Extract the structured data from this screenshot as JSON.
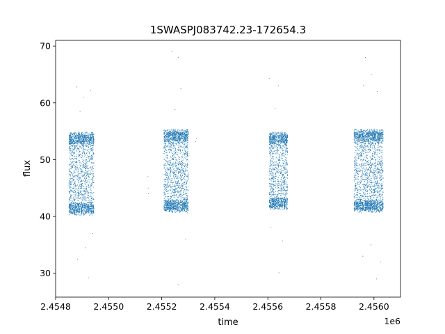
{
  "chart_data": {
    "type": "scatter",
    "title": "1SWASPJ083742.23-172654.3",
    "xlabel": "time",
    "ylabel": "flux",
    "x_offset_label": "1e6",
    "xlim": [
      2454800,
      2456100
    ],
    "ylim": [
      25.8,
      71.0
    ],
    "x_ticks": [
      2454800,
      2455000,
      2455200,
      2455400,
      2455600,
      2455800,
      2456000
    ],
    "x_tick_labels": [
      "2.4548",
      "2.4550",
      "2.4552",
      "2.4554",
      "2.4556",
      "2.4558",
      "2.4560"
    ],
    "y_ticks": [
      30,
      40,
      50,
      60,
      70
    ],
    "y_tick_labels": [
      "30",
      "40",
      "50",
      "60",
      "70"
    ],
    "grid": false,
    "point_color": "#1f77b4",
    "observing_seasons": [
      {
        "x_range": [
          2454850,
          2454945
        ],
        "flux_range": [
          40.5,
          54.5
        ]
      },
      {
        "x_range": [
          2455208,
          2455300
        ],
        "flux_range": [
          41.0,
          55.0
        ]
      },
      {
        "x_range": [
          2455605,
          2455675
        ],
        "flux_range": [
          41.5,
          54.5
        ]
      },
      {
        "x_range": [
          2455925,
          2456035
        ],
        "flux_range": [
          41.0,
          55.0
        ]
      }
    ],
    "isolated_points": [
      {
        "x": 2455148,
        "flux": 47.0
      },
      {
        "x": 2455149,
        "flux": 45.0
      },
      {
        "x": 2455150,
        "flux": 44.0
      },
      {
        "x": 2455328,
        "flux": 53.2
      },
      {
        "x": 2455330,
        "flux": 53.8
      }
    ],
    "outliers": [
      {
        "x": 2454878,
        "flux": 62.8
      },
      {
        "x": 2454892,
        "flux": 58.5
      },
      {
        "x": 2454905,
        "flux": 61.0
      },
      {
        "x": 2454932,
        "flux": 62.2
      },
      {
        "x": 2454912,
        "flux": 34.5
      },
      {
        "x": 2454925,
        "flux": 29.2
      },
      {
        "x": 2454883,
        "flux": 32.5
      },
      {
        "x": 2454940,
        "flux": 37.0
      },
      {
        "x": 2455238,
        "flux": 69.0
      },
      {
        "x": 2455262,
        "flux": 68.0
      },
      {
        "x": 2455272,
        "flux": 62.5
      },
      {
        "x": 2455250,
        "flux": 58.8
      },
      {
        "x": 2455262,
        "flux": 28.0
      },
      {
        "x": 2455290,
        "flux": 36.0
      },
      {
        "x": 2455605,
        "flux": 64.3
      },
      {
        "x": 2455640,
        "flux": 63.0
      },
      {
        "x": 2455628,
        "flux": 59.0
      },
      {
        "x": 2455655,
        "flux": 35.7
      },
      {
        "x": 2455642,
        "flux": 30.1
      },
      {
        "x": 2455612,
        "flux": 38.0
      },
      {
        "x": 2455968,
        "flux": 68.0
      },
      {
        "x": 2455990,
        "flux": 65.0
      },
      {
        "x": 2455960,
        "flux": 63.0
      },
      {
        "x": 2456012,
        "flux": 62.0
      },
      {
        "x": 2455958,
        "flux": 33.0
      },
      {
        "x": 2455988,
        "flux": 35.0
      },
      {
        "x": 2456010,
        "flux": 29.0
      },
      {
        "x": 2456025,
        "flux": 32.0
      }
    ]
  }
}
